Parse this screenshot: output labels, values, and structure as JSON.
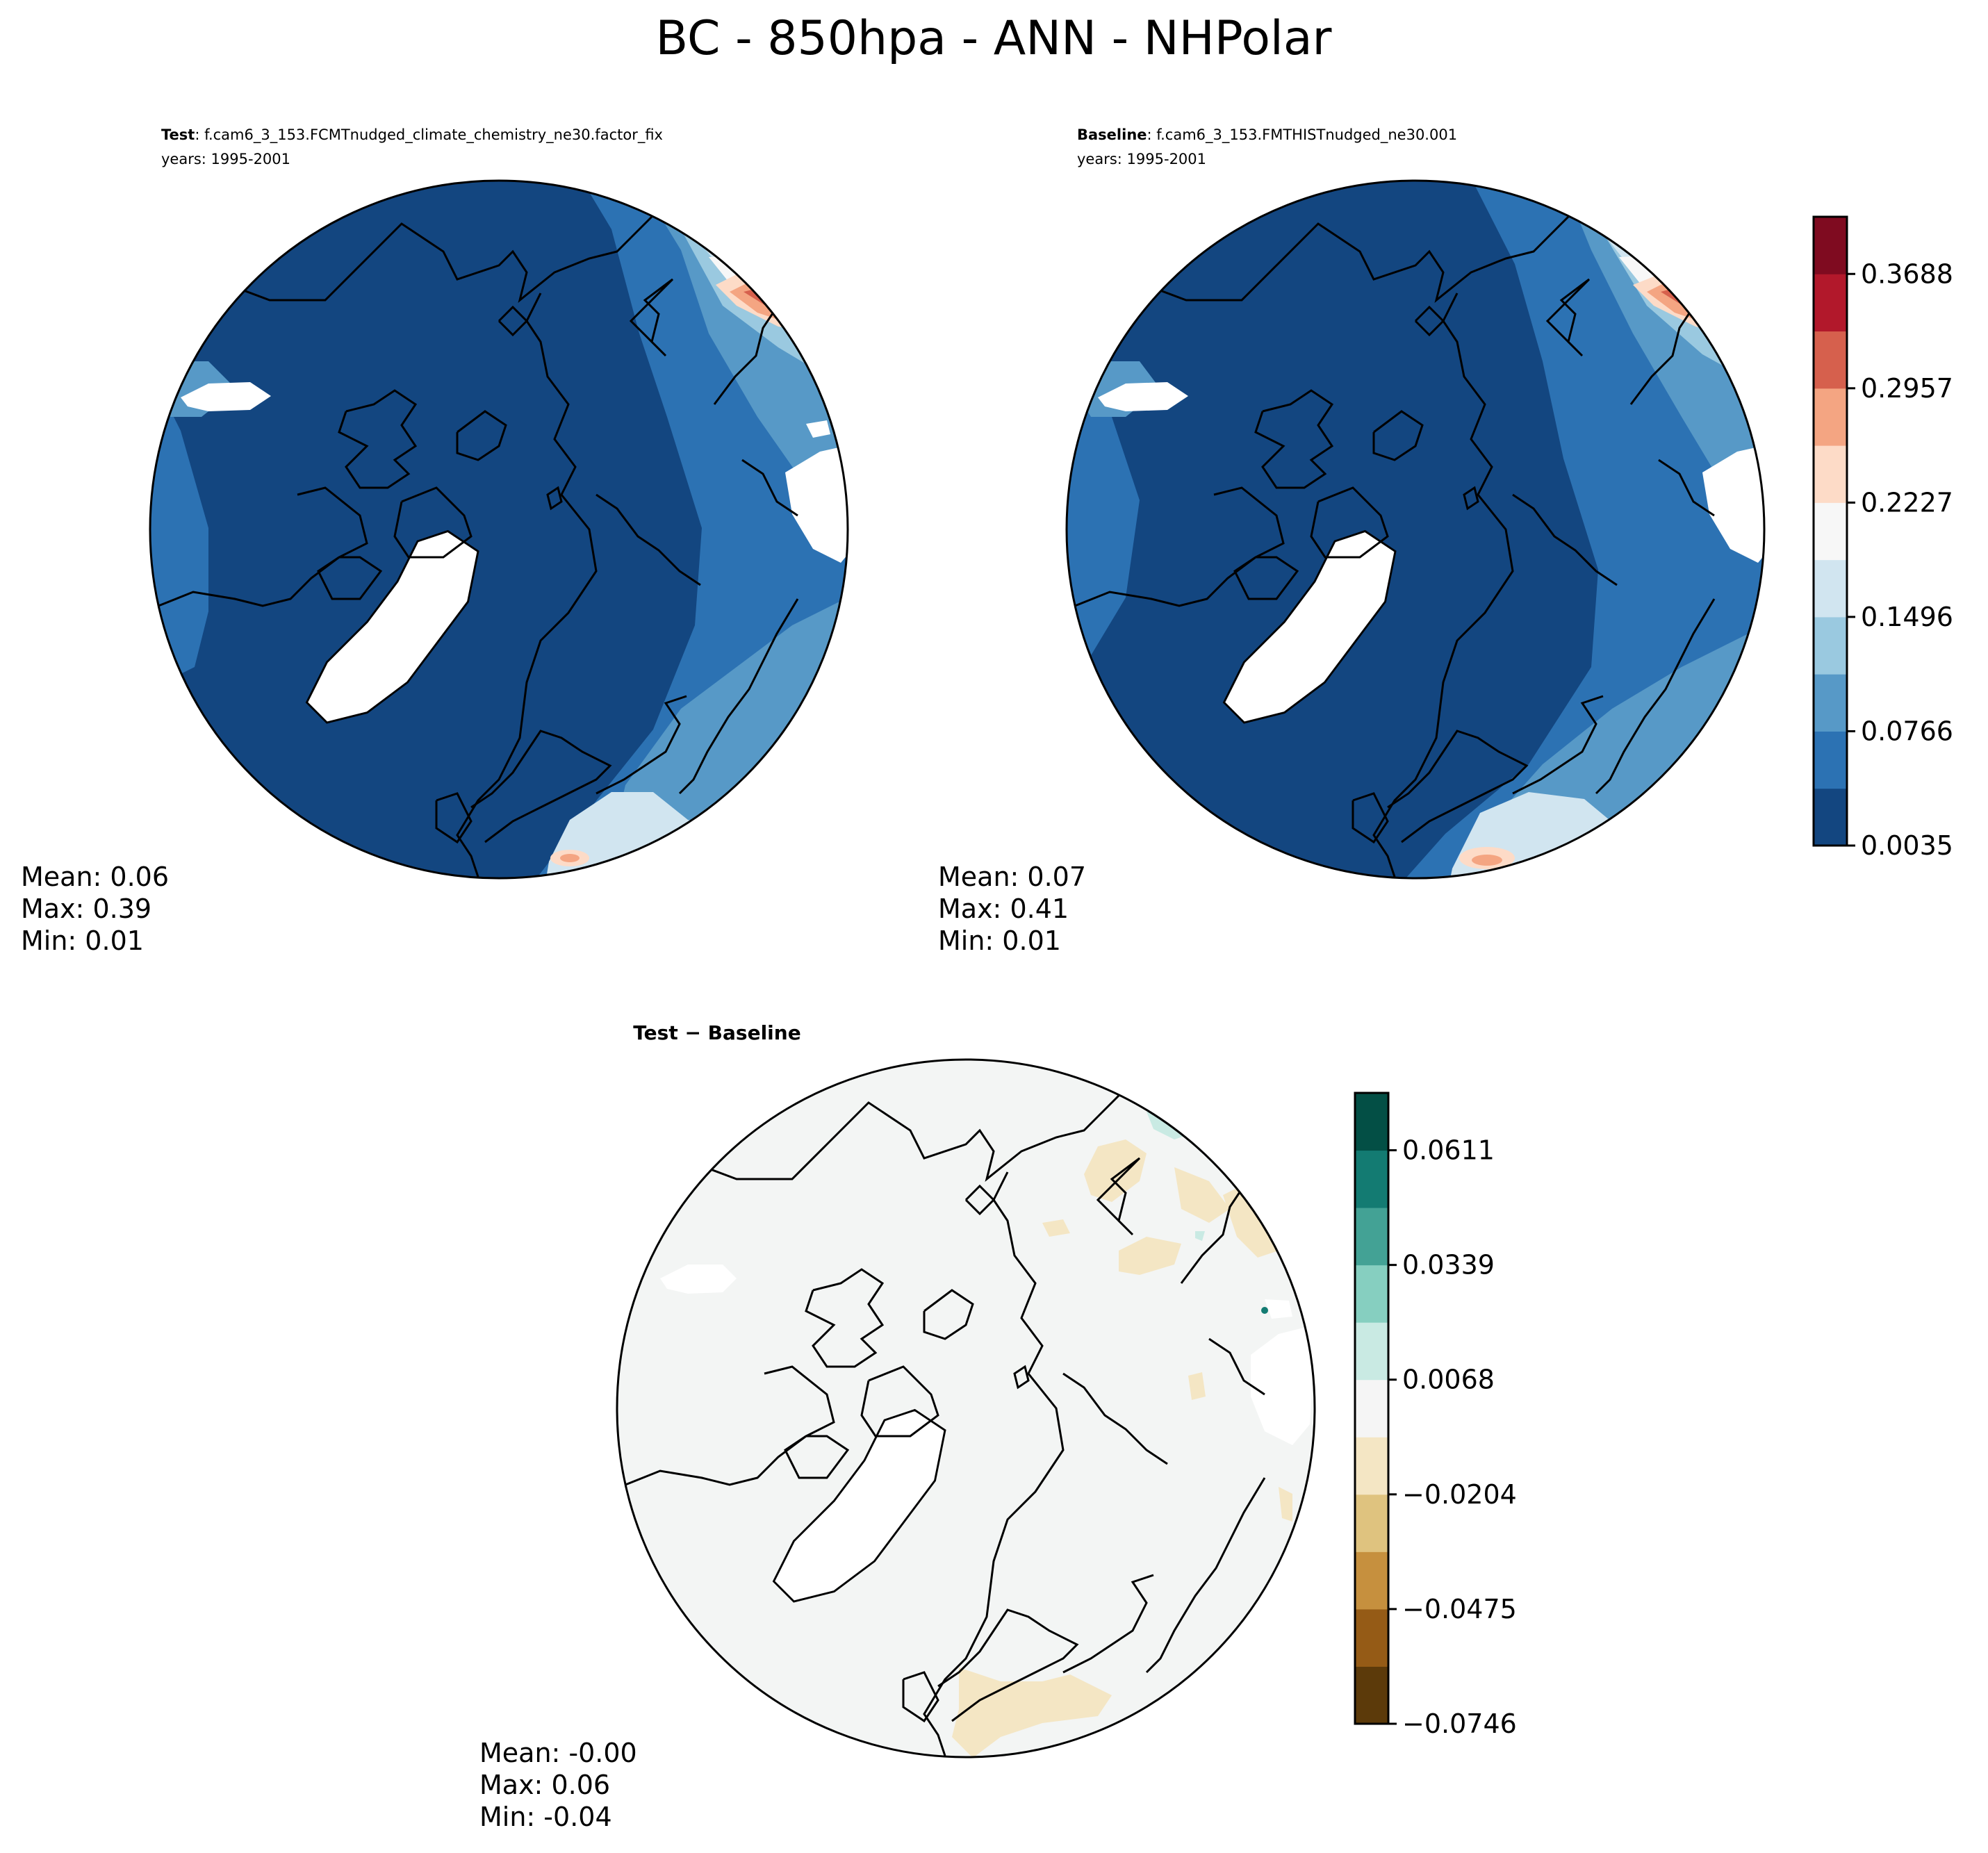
{
  "figure": {
    "title": "BC - 850hpa - ANN - NHPolar"
  },
  "panels": [
    {
      "id": "test",
      "label_bold": "Test",
      "label_rest": ": f.cam6_3_153.FCMTnudged_climate_chemistry_ne30.factor_fix",
      "years": "years: 1995-2001",
      "stats": {
        "mean": "Mean:  0.06",
        "max": "Max:  0.39",
        "min": "Min:  0.01"
      }
    },
    {
      "id": "baseline",
      "label_bold": "Baseline",
      "label_rest": ": f.cam6_3_153.FMTHISTnudged_ne30.001",
      "years": "years: 1995-2001",
      "stats": {
        "mean": "Mean:  0.07",
        "max": "Max:  0.41",
        "min": "Min:  0.01"
      }
    },
    {
      "id": "diff",
      "label_bold": "Test − Baseline",
      "label_rest": "",
      "years": "",
      "stats": {
        "mean": "Mean: -0.00",
        "max": "Max:  0.06",
        "min": "Min: -0.04"
      }
    }
  ],
  "colorbars": [
    {
      "name": "main",
      "colors": [
        "#134680",
        "#2c72b3",
        "#5799c7",
        "#9ac9e0",
        "#d1e5f0",
        "#f7f7f7",
        "#fddbc7",
        "#f4a582",
        "#d6604d",
        "#b2182b",
        "#7f0b20"
      ],
      "ticks": [
        "0.0035",
        "0.0766",
        "0.1496",
        "0.2227",
        "0.2957",
        "0.3688"
      ]
    },
    {
      "name": "diff",
      "colors": [
        "#5c3a0a",
        "#955b16",
        "#c6903e",
        "#dfc37f",
        "#f4e6c4",
        "#f5f5f5",
        "#c9eae3",
        "#86cfc0",
        "#43a295",
        "#137b72",
        "#034f45"
      ],
      "ticks": [
        "−0.0746",
        "−0.0475",
        "−0.0204",
        "0.0068",
        "0.0339",
        "0.0611"
      ]
    }
  ],
  "colors": {
    "land_outline": "#000000",
    "deep_blue": "#134680",
    "mid_blue": "#2c72b3",
    "light_blue": "#5799c7",
    "pale_blue": "#9ac9e0",
    "diff_neutral": "#f3f5f4",
    "diff_tan": "#f4e6c4"
  }
}
